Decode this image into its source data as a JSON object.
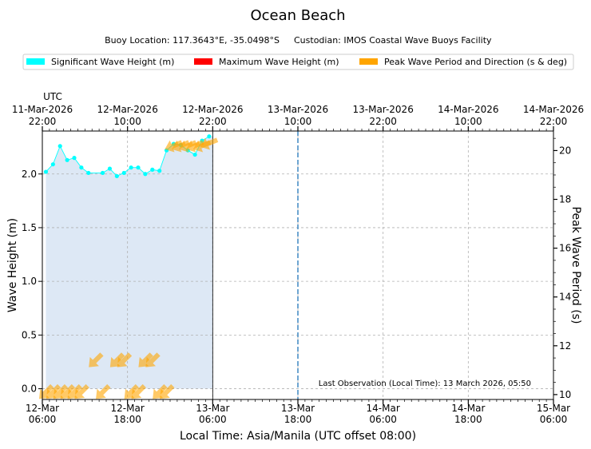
{
  "chart_data": {
    "type": "line",
    "title": "Ocean Beach",
    "subtitle": {
      "buoy_location": "Buoy Location: 117.3643°E, -35.0498°S",
      "custodian": "Custodian: IMOS Coastal Wave Buoys Facility"
    },
    "legend": {
      "placement": "top",
      "items": [
        {
          "label": "Significant Wave Height (m)",
          "color": "#00ffff"
        },
        {
          "label": "Maximum Wave Height (m)",
          "color": "#ff0000"
        },
        {
          "label": "Peak Wave Period and Direction (s & deg)",
          "color": "#ffa500"
        }
      ]
    },
    "xlabel": "Local Time: Asia/Manila (UTC offset 08:00)",
    "x_range": [
      "2026-03-12 06:00",
      "2026-03-15 06:00"
    ],
    "x_ticks": [
      {
        "t": "2026-03-12 06:00",
        "line1": "12-Mar",
        "line2": "06:00"
      },
      {
        "t": "2026-03-12 18:00",
        "line1": "12-Mar",
        "line2": "18:00"
      },
      {
        "t": "2026-03-13 06:00",
        "line1": "13-Mar",
        "line2": "06:00"
      },
      {
        "t": "2026-03-13 18:00",
        "line1": "13-Mar",
        "line2": "18:00"
      },
      {
        "t": "2026-03-14 06:00",
        "line1": "14-Mar",
        "line2": "06:00"
      },
      {
        "t": "2026-03-14 18:00",
        "line1": "14-Mar",
        "line2": "18:00"
      },
      {
        "t": "2026-03-15 06:00",
        "line1": "15-Mar",
        "line2": "06:00"
      }
    ],
    "top_axis": {
      "label": "UTC",
      "ticks": [
        {
          "line1": "11-Mar-2026",
          "line2": "22:00"
        },
        {
          "line1": "12-Mar-2026",
          "line2": "10:00"
        },
        {
          "line1": "12-Mar-2026",
          "line2": "22:00"
        },
        {
          "line1": "13-Mar-2026",
          "line2": "10:00"
        },
        {
          "line1": "13-Mar-2026",
          "line2": "22:00"
        },
        {
          "line1": "14-Mar-2026",
          "line2": "10:00"
        },
        {
          "line1": "14-Mar-2026",
          "line2": "22:00"
        }
      ]
    },
    "ylabel": "Wave Height (m)",
    "ylim": [
      -0.1,
      2.4
    ],
    "y_ticks": [
      "0.0",
      "0.5",
      "1.0",
      "1.5",
      "2.0"
    ],
    "y2label": "Peak Wave Period (s)",
    "y2lim": [
      9.8,
      20.8
    ],
    "y2_ticks": [
      "10",
      "12",
      "14",
      "16",
      "18",
      "20"
    ],
    "grid": true,
    "shaded_period": {
      "start": "2026-03-12 06:30",
      "end": "2026-03-13 06:00",
      "color": "#dde8f5"
    },
    "current_time_marker": "2026-03-13 18:00",
    "annotation": "Last Observation (Local Time): 13 March 2026, 05:50",
    "series": [
      {
        "name": "Significant Wave Height (m)",
        "color": "#00ffff",
        "x": [
          "2026-03-12 06:30",
          "2026-03-12 07:30",
          "2026-03-12 08:30",
          "2026-03-12 09:30",
          "2026-03-12 10:30",
          "2026-03-12 11:30",
          "2026-03-12 12:30",
          "2026-03-12 13:30",
          "2026-03-12 14:30",
          "2026-03-12 15:30",
          "2026-03-12 16:30",
          "2026-03-12 17:30",
          "2026-03-12 18:30",
          "2026-03-12 19:30",
          "2026-03-12 20:30",
          "2026-03-12 21:30",
          "2026-03-12 22:30",
          "2026-03-12 23:30",
          "2026-03-13 00:30",
          "2026-03-13 01:30",
          "2026-03-13 02:30",
          "2026-03-13 03:30",
          "2026-03-13 04:30",
          "2026-03-13 05:30"
        ],
        "y": [
          2.02,
          2.09,
          2.26,
          2.13,
          2.15,
          2.06,
          2.01,
          null,
          2.01,
          2.05,
          1.98,
          2.01,
          2.06,
          2.06,
          2.0,
          2.04,
          2.03,
          2.22,
          2.28,
          2.27,
          2.22,
          2.18,
          2.31,
          2.35
        ]
      },
      {
        "name": "Peak Wave Period and Direction (s & deg)",
        "color": "#ffa500",
        "x": [
          "2026-03-12 06:30",
          "2026-03-12 07:30",
          "2026-03-12 08:30",
          "2026-03-12 09:30",
          "2026-03-12 10:30",
          "2026-03-12 11:30",
          "2026-03-12 13:30",
          "2026-03-12 14:30",
          "2026-03-12 16:30",
          "2026-03-12 17:30",
          "2026-03-12 18:30",
          "2026-03-12 19:30",
          "2026-03-12 20:30",
          "2026-03-12 21:30",
          "2026-03-12 22:30",
          "2026-03-12 23:30",
          "2026-03-13 00:30",
          "2026-03-13 01:30",
          "2026-03-13 02:30",
          "2026-03-13 03:30",
          "2026-03-13 04:30",
          "2026-03-13 05:30"
        ],
        "y": [
          10.1,
          10.1,
          10.1,
          10.1,
          10.1,
          10.1,
          11.4,
          10.1,
          11.4,
          11.4,
          10.1,
          10.1,
          11.4,
          11.4,
          10.1,
          10.1,
          20.2,
          20.2,
          20.2,
          20.2,
          20.2,
          20.3
        ],
        "direction_deg": [
          225,
          225,
          225,
          225,
          225,
          225,
          225,
          225,
          225,
          225,
          225,
          225,
          225,
          225,
          225,
          225,
          248,
          248,
          248,
          248,
          248,
          248
        ]
      }
    ]
  }
}
